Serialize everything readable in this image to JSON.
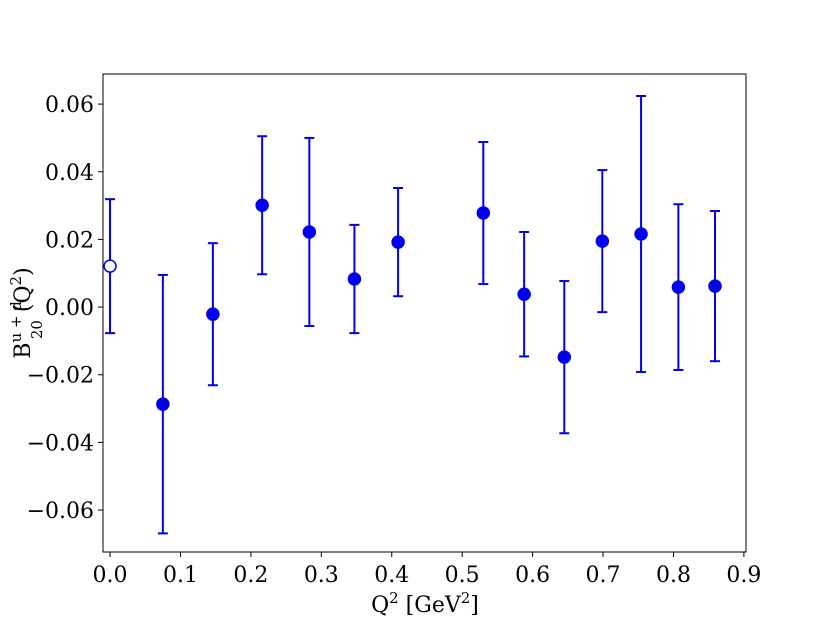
{
  "chart_data": {
    "type": "errorbar",
    "xlabel": [
      "Q",
      "2",
      " [GeV",
      "2",
      "]"
    ],
    "ylabel": [
      "B",
      "u + d",
      "20",
      "(Q",
      "2",
      ")"
    ],
    "series": [
      {
        "color": "#0000ee",
        "marker": "open",
        "x": [
          0.0
        ],
        "values": [
          0.0121
        ],
        "errors": [
          0.0198
        ]
      },
      {
        "color": "#0000ee",
        "marker": "filled",
        "x": [
          0.075,
          0.146,
          0.216,
          0.283,
          0.347,
          0.409,
          0.53,
          0.588,
          0.645,
          0.699,
          0.754,
          0.807,
          0.859
        ],
        "values": [
          -0.0287,
          -0.0021,
          0.0301,
          0.0222,
          0.0083,
          0.0192,
          0.0278,
          0.0038,
          -0.0148,
          0.0195,
          0.0216,
          0.0059,
          0.0062
        ],
        "errors": [
          0.0382,
          0.021,
          0.0204,
          0.0278,
          0.016,
          0.016,
          0.021,
          0.0184,
          0.0225,
          0.021,
          0.0408,
          0.0245,
          0.0222
        ]
      }
    ],
    "xlim": [
      -0.01,
      0.903
    ],
    "ylim": [
      -0.0724,
      0.0689
    ],
    "xticks": [
      {
        "value": 0,
        "label": "0.0"
      },
      0.1,
      0.2,
      0.3,
      0.4,
      0.5,
      0.6,
      0.7,
      0.8,
      0.9
    ],
    "yticks": [
      {
        "value": -0.06,
        "label": "−0.06"
      },
      {
        "value": -0.04,
        "label": "−0.04"
      },
      {
        "value": -0.02,
        "label": "−0.02"
      },
      {
        "value": 0,
        "label": "0.00"
      },
      0.02,
      0.04,
      0.06
    ],
    "grid": false
  }
}
